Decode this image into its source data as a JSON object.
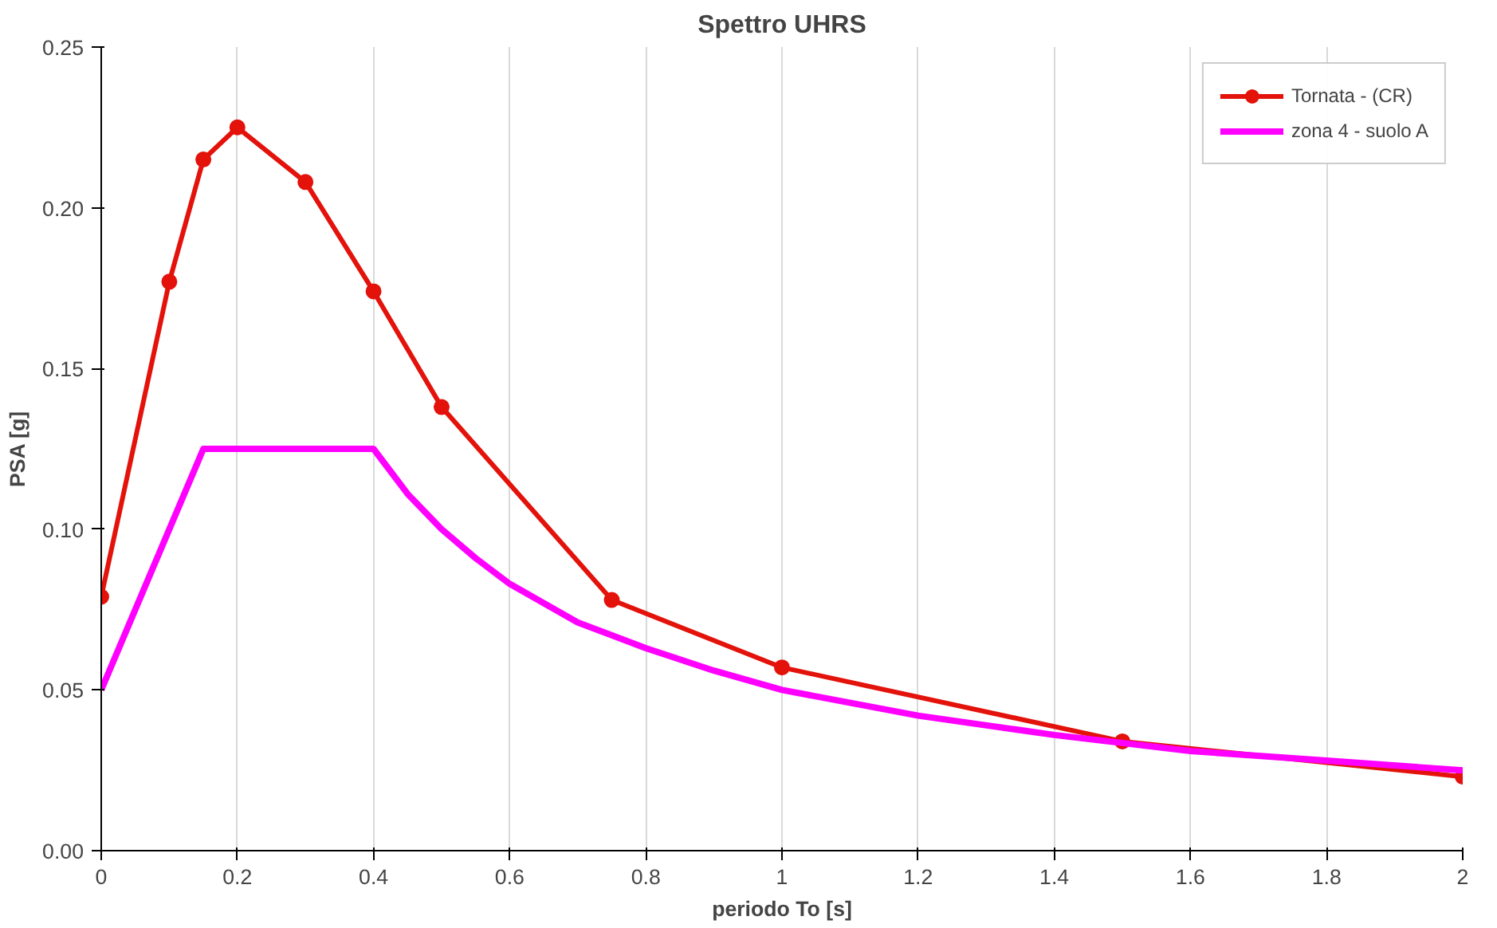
{
  "chart_data": {
    "type": "line",
    "title": "Spettro UHRS",
    "xlabel": "periodo To [s]",
    "ylabel": "PSA [g]",
    "series": [
      {
        "name": "Tornata - (CR)",
        "color": "#e3120b",
        "marker": "circle",
        "x": [
          0,
          0.1,
          0.15,
          0.2,
          0.3,
          0.4,
          0.5,
          0.75,
          1.0,
          1.5,
          2.0
        ],
        "values": [
          0.079,
          0.177,
          0.215,
          0.225,
          0.208,
          0.174,
          0.138,
          0.078,
          0.057,
          0.034,
          0.023
        ]
      },
      {
        "name": "zona 4 - suolo A",
        "color": "#ff00ff",
        "marker": "none",
        "x": [
          0,
          0.15,
          0.4,
          0.45,
          0.5,
          0.55,
          0.6,
          0.7,
          0.8,
          0.9,
          1.0,
          1.2,
          1.4,
          1.6,
          1.8,
          2.0
        ],
        "values": [
          0.05,
          0.125,
          0.125,
          0.111,
          0.1,
          0.091,
          0.083,
          0.071,
          0.063,
          0.056,
          0.05,
          0.042,
          0.036,
          0.031,
          0.028,
          0.025
        ]
      }
    ],
    "xlim": [
      0,
      2
    ],
    "ylim": [
      0,
      0.25
    ],
    "xticks": [
      0,
      {
        "value": 0.2,
        "label": "0.2"
      },
      {
        "value": 0.4,
        "label": "0.4"
      },
      {
        "value": 0.6,
        "label": "0.6"
      },
      {
        "value": 0.8,
        "label": "0.8"
      },
      1,
      {
        "value": 1.2,
        "label": "1.2"
      },
      {
        "value": 1.4,
        "label": "1.4"
      },
      {
        "value": 1.6,
        "label": "1.6"
      },
      {
        "value": 1.8,
        "label": "1.8"
      },
      2
    ],
    "yticks": [
      {
        "value": 0,
        "label": "0.00"
      },
      {
        "value": 0.05,
        "label": "0.05"
      },
      {
        "value": 0.1,
        "label": "0.10"
      },
      {
        "value": 0.15,
        "label": "0.15"
      },
      {
        "value": 0.2,
        "label": "0.20"
      },
      {
        "value": 0.25,
        "label": "0.25"
      }
    ],
    "grid": "x",
    "legend": "top right",
    "line_style": "solid"
  }
}
